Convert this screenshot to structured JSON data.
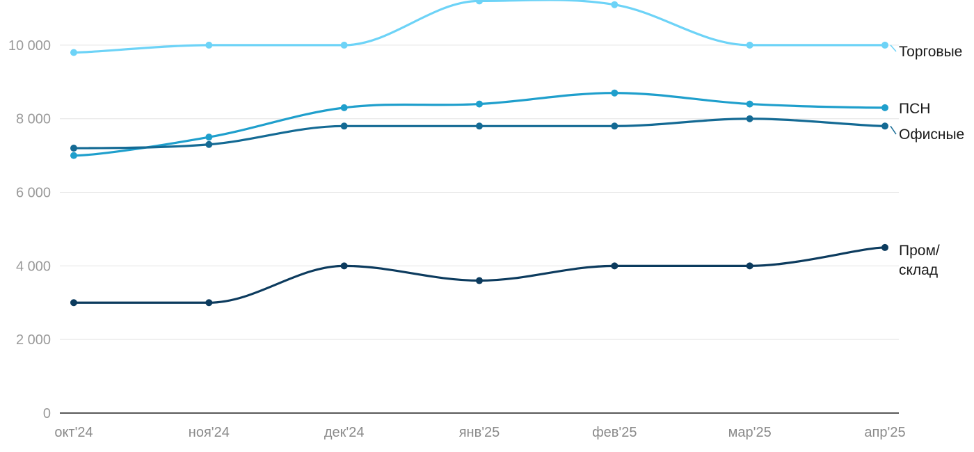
{
  "chart_data": {
    "type": "line",
    "title": "",
    "xlabel": "",
    "ylabel": "",
    "categories": [
      "окт'24",
      "ноя'24",
      "дек'24",
      "янв'25",
      "фев'25",
      "мар'25",
      "апр'25"
    ],
    "ylim": [
      0,
      11000
    ],
    "yticks": [
      0,
      2000,
      4000,
      6000,
      8000,
      10000
    ],
    "ytick_labels": [
      "0",
      "2 000",
      "4 000",
      "6 000",
      "8 000",
      "10 000"
    ],
    "grid": true,
    "legend": "end-of-line labels",
    "series": [
      {
        "name": "Торговые",
        "label_lines": [
          "Торговые"
        ],
        "color": "#6dd3f7",
        "values": [
          9800,
          10000,
          10000,
          11200,
          11100,
          10000,
          10000
        ]
      },
      {
        "name": "ПСН",
        "label_lines": [
          "ПСН"
        ],
        "color": "#1f9fcc",
        "values": [
          7000,
          7500,
          8300,
          8400,
          8700,
          8400,
          8300
        ]
      },
      {
        "name": "Офисные",
        "label_lines": [
          "Офисные"
        ],
        "color": "#146a94",
        "values": [
          7200,
          7300,
          7800,
          7800,
          7800,
          8000,
          7800
        ]
      },
      {
        "name": "Пром/ склад",
        "label_lines": [
          "Пром/",
          "склад"
        ],
        "color": "#0c3b5e",
        "values": [
          3000,
          3000,
          4000,
          3600,
          4000,
          4000,
          4500
        ]
      }
    ]
  }
}
